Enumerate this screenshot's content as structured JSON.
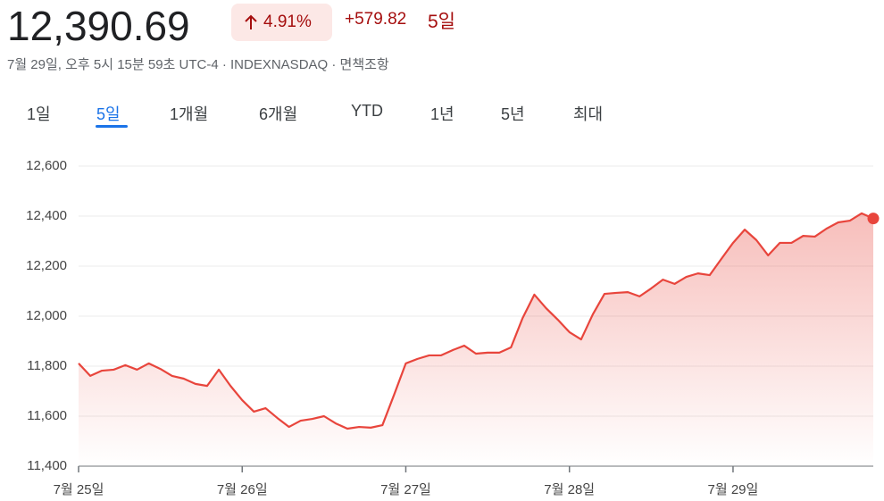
{
  "header": {
    "price": "12,390.69",
    "change_percent": "4.91%",
    "change": "+579.82",
    "period": "5일",
    "subtitle": "7월 29일, 오후 5시 15분 59초 UTC-4 · INDEXNASDAQ · 면책조항"
  },
  "tabs": {
    "items": [
      "1일",
      "5일",
      "1개월",
      "6개월",
      "YTD",
      "1년",
      "5년",
      "최대"
    ],
    "active": 1
  },
  "chart_data": {
    "type": "area",
    "color": "#e8453c",
    "categories": [
      "7월 25일",
      null,
      null,
      null,
      null,
      null,
      null,
      null,
      null,
      null,
      null,
      null,
      null,
      null,
      "7월 26일",
      null,
      null,
      null,
      null,
      null,
      null,
      null,
      null,
      null,
      null,
      null,
      null,
      null,
      "7월 27일",
      null,
      null,
      null,
      null,
      null,
      null,
      null,
      null,
      null,
      null,
      null,
      null,
      null,
      "7월 28일",
      null,
      null,
      null,
      null,
      null,
      null,
      null,
      null,
      null,
      null,
      null,
      null,
      null,
      "7월 29일",
      null,
      null,
      null,
      null,
      null,
      null,
      null,
      null,
      null,
      null,
      null,
      null
    ],
    "values": [
      11811,
      11761,
      11782,
      11786,
      11804,
      11786,
      11811,
      11789,
      11761,
      11750,
      11729,
      11721,
      11786,
      11721,
      11664,
      11618,
      11632,
      11593,
      11557,
      11582,
      11589,
      11600,
      11571,
      11550,
      11557,
      11554,
      11564,
      11686,
      11811,
      11829,
      11843,
      11843,
      11864,
      11882,
      11850,
      11854,
      11854,
      11875,
      11993,
      12086,
      12032,
      11986,
      11936,
      11907,
      12007,
      12089,
      12093,
      12096,
      12079,
      12111,
      12146,
      12129,
      12157,
      12171,
      12164,
      12229,
      12293,
      12346,
      12304,
      12243,
      12293,
      12293,
      12321,
      12318,
      12350,
      12375,
      12382,
      12411,
      12390.69
    ],
    "ylim": [
      11400,
      12600
    ],
    "yticks": [
      {
        "value": 11400,
        "label": "11,400"
      },
      {
        "value": 11600,
        "label": "11,600"
      },
      {
        "value": 11800,
        "label": "11,800"
      },
      {
        "value": 12000,
        "label": "12,000"
      },
      {
        "value": 12200,
        "label": "12,200"
      },
      {
        "value": 12400,
        "label": "12,400"
      },
      {
        "value": 12600,
        "label": "12,600"
      }
    ],
    "grid": true
  }
}
